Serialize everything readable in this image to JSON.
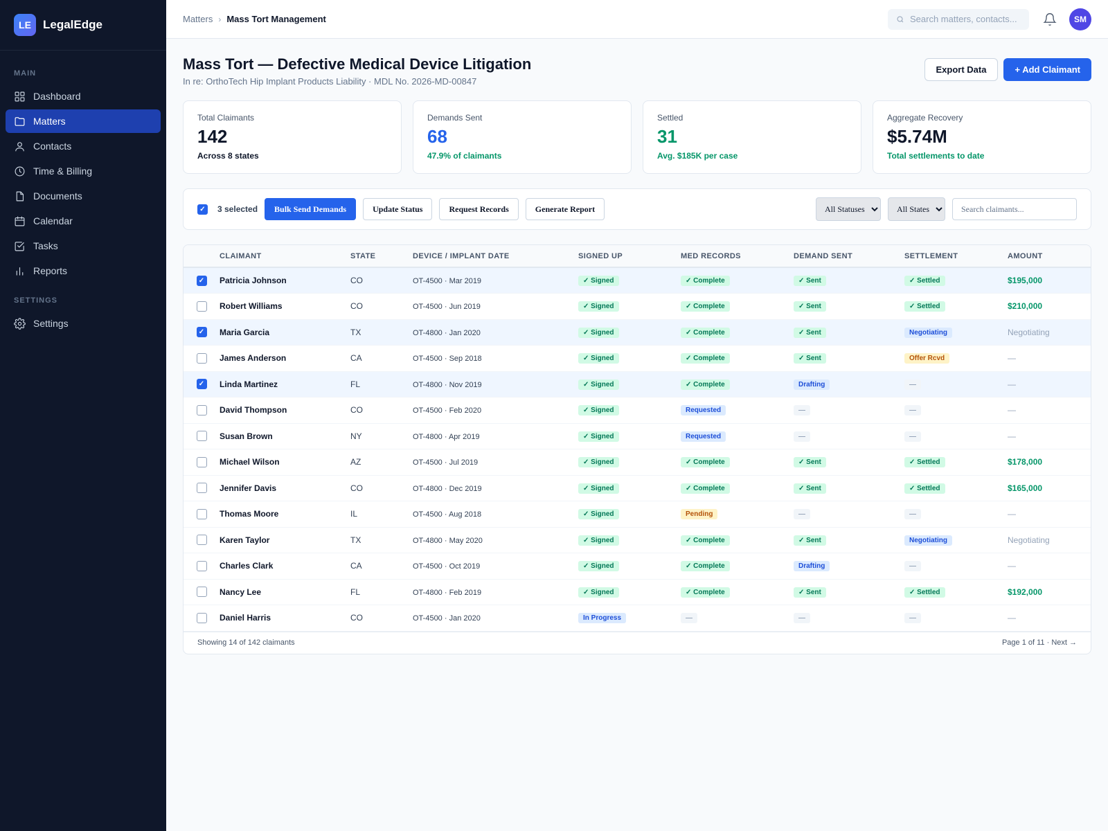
{
  "brand": {
    "logo": "LE",
    "name": "LegalEdge"
  },
  "sidebar": {
    "main_label": "MAIN",
    "settings_label": "SETTINGS",
    "items": [
      {
        "label": "Dashboard",
        "icon": "dashboard-icon"
      },
      {
        "label": "Matters",
        "icon": "folder-icon",
        "active": true
      },
      {
        "label": "Contacts",
        "icon": "user-icon"
      },
      {
        "label": "Time & Billing",
        "icon": "clock-icon"
      },
      {
        "label": "Documents",
        "icon": "document-icon"
      },
      {
        "label": "Calendar",
        "icon": "calendar-icon"
      },
      {
        "label": "Tasks",
        "icon": "task-icon"
      },
      {
        "label": "Reports",
        "icon": "bar-chart-icon"
      }
    ],
    "settings_items": [
      {
        "label": "Settings",
        "icon": "gear-icon"
      }
    ]
  },
  "topbar": {
    "breadcrumb_parent": "Matters",
    "breadcrumb_sep": "›",
    "breadcrumb_current": "Mass Tort Management",
    "search_placeholder": "Search matters, contacts...",
    "avatar": "SM"
  },
  "page": {
    "title": "Mass Tort — Defective Medical Device Litigation",
    "subtitle": "In re: OrthoTech Hip Implant Products Liability · MDL No. 2026-MD-00847",
    "export_label": "Export Data",
    "add_label": "+ Add Claimant"
  },
  "stats": [
    {
      "label": "Total Claimants",
      "value": "142",
      "note": "Across 8 states",
      "value_color": "#0f172a",
      "note_color": "#0f172a"
    },
    {
      "label": "Demands Sent",
      "value": "68",
      "note": "47.9% of claimants",
      "value_color": "#2563eb",
      "note_color": "#059669"
    },
    {
      "label": "Settled",
      "value": "31",
      "note": "Avg. $185K per case",
      "value_color": "#059669",
      "note_color": "#059669"
    },
    {
      "label": "Aggregate Recovery",
      "value": "$5.74M",
      "note": "Total settlements to date",
      "value_color": "#0f172a",
      "note_color": "#059669"
    }
  ],
  "toolbar": {
    "selected_text": "3 selected",
    "bulk_send_label": "Bulk Send Demands",
    "update_status_label": "Update Status",
    "request_records_label": "Request Records",
    "generate_report_label": "Generate Report",
    "status_filter": "All Statuses",
    "state_filter": "All States",
    "search_placeholder": "Search claimants..."
  },
  "table": {
    "columns": [
      "CLAIMANT",
      "STATE",
      "DEVICE / IMPLANT DATE",
      "SIGNED UP",
      "MED RECORDS",
      "DEMAND SENT",
      "SETTLEMENT",
      "AMOUNT"
    ],
    "rows": [
      {
        "selected": true,
        "name": "Patricia Johnson",
        "state": "CO",
        "device": "OT-4500 · Mar 2019",
        "signed": [
          "✓ Signed",
          "green"
        ],
        "records": [
          "✓ Complete",
          "green"
        ],
        "demand": [
          "✓ Sent",
          "green"
        ],
        "settlement": [
          "✓ Settled",
          "green"
        ],
        "amount": [
          "$195,000",
          "val"
        ]
      },
      {
        "selected": false,
        "name": "Robert Williams",
        "state": "CO",
        "device": "OT-4500 · Jun 2019",
        "signed": [
          "✓ Signed",
          "green"
        ],
        "records": [
          "✓ Complete",
          "green"
        ],
        "demand": [
          "✓ Sent",
          "green"
        ],
        "settlement": [
          "✓ Settled",
          "green"
        ],
        "amount": [
          "$210,000",
          "val"
        ]
      },
      {
        "selected": true,
        "name": "Maria Garcia",
        "state": "TX",
        "device": "OT-4800 · Jan 2020",
        "signed": [
          "✓ Signed",
          "green"
        ],
        "records": [
          "✓ Complete",
          "green"
        ],
        "demand": [
          "✓ Sent",
          "green"
        ],
        "settlement": [
          "Negotiating",
          "blue"
        ],
        "amount": [
          "Negotiating",
          "neg"
        ]
      },
      {
        "selected": false,
        "name": "James Anderson",
        "state": "CA",
        "device": "OT-4500 · Sep 2018",
        "signed": [
          "✓ Signed",
          "green"
        ],
        "records": [
          "✓ Complete",
          "green"
        ],
        "demand": [
          "✓ Sent",
          "green"
        ],
        "settlement": [
          "Offer Rcvd",
          "amber"
        ],
        "amount": [
          "—",
          "dash"
        ]
      },
      {
        "selected": true,
        "name": "Linda Martinez",
        "state": "FL",
        "device": "OT-4800 · Nov 2019",
        "signed": [
          "✓ Signed",
          "green"
        ],
        "records": [
          "✓ Complete",
          "green"
        ],
        "demand": [
          "Drafting",
          "blue"
        ],
        "settlement": [
          "—",
          "gray"
        ],
        "amount": [
          "—",
          "dash"
        ]
      },
      {
        "selected": false,
        "name": "David Thompson",
        "state": "CO",
        "device": "OT-4500 · Feb 2020",
        "signed": [
          "✓ Signed",
          "green"
        ],
        "records": [
          "Requested",
          "blue"
        ],
        "demand": [
          "—",
          "gray"
        ],
        "settlement": [
          "—",
          "gray"
        ],
        "amount": [
          "—",
          "dash"
        ]
      },
      {
        "selected": false,
        "name": "Susan Brown",
        "state": "NY",
        "device": "OT-4800 · Apr 2019",
        "signed": [
          "✓ Signed",
          "green"
        ],
        "records": [
          "Requested",
          "blue"
        ],
        "demand": [
          "—",
          "gray"
        ],
        "settlement": [
          "—",
          "gray"
        ],
        "amount": [
          "—",
          "dash"
        ]
      },
      {
        "selected": false,
        "name": "Michael Wilson",
        "state": "AZ",
        "device": "OT-4500 · Jul 2019",
        "signed": [
          "✓ Signed",
          "green"
        ],
        "records": [
          "✓ Complete",
          "green"
        ],
        "demand": [
          "✓ Sent",
          "green"
        ],
        "settlement": [
          "✓ Settled",
          "green"
        ],
        "amount": [
          "$178,000",
          "val"
        ]
      },
      {
        "selected": false,
        "name": "Jennifer Davis",
        "state": "CO",
        "device": "OT-4800 · Dec 2019",
        "signed": [
          "✓ Signed",
          "green"
        ],
        "records": [
          "✓ Complete",
          "green"
        ],
        "demand": [
          "✓ Sent",
          "green"
        ],
        "settlement": [
          "✓ Settled",
          "green"
        ],
        "amount": [
          "$165,000",
          "val"
        ]
      },
      {
        "selected": false,
        "name": "Thomas Moore",
        "state": "IL",
        "device": "OT-4500 · Aug 2018",
        "signed": [
          "✓ Signed",
          "green"
        ],
        "records": [
          "Pending",
          "amber"
        ],
        "demand": [
          "—",
          "gray"
        ],
        "settlement": [
          "—",
          "gray"
        ],
        "amount": [
          "—",
          "dash"
        ]
      },
      {
        "selected": false,
        "name": "Karen Taylor",
        "state": "TX",
        "device": "OT-4800 · May 2020",
        "signed": [
          "✓ Signed",
          "green"
        ],
        "records": [
          "✓ Complete",
          "green"
        ],
        "demand": [
          "✓ Sent",
          "green"
        ],
        "settlement": [
          "Negotiating",
          "blue"
        ],
        "amount": [
          "Negotiating",
          "neg"
        ]
      },
      {
        "selected": false,
        "name": "Charles Clark",
        "state": "CA",
        "device": "OT-4500 · Oct 2019",
        "signed": [
          "✓ Signed",
          "green"
        ],
        "records": [
          "✓ Complete",
          "green"
        ],
        "demand": [
          "Drafting",
          "blue"
        ],
        "settlement": [
          "—",
          "gray"
        ],
        "amount": [
          "—",
          "dash"
        ]
      },
      {
        "selected": false,
        "name": "Nancy Lee",
        "state": "FL",
        "device": "OT-4800 · Feb 2019",
        "signed": [
          "✓ Signed",
          "green"
        ],
        "records": [
          "✓ Complete",
          "green"
        ],
        "demand": [
          "✓ Sent",
          "green"
        ],
        "settlement": [
          "✓ Settled",
          "green"
        ],
        "amount": [
          "$192,000",
          "val"
        ]
      },
      {
        "selected": false,
        "name": "Daniel Harris",
        "state": "CO",
        "device": "OT-4500 · Jan 2020",
        "signed": [
          "In Progress",
          "blue"
        ],
        "records": [
          "—",
          "gray"
        ],
        "demand": [
          "—",
          "gray"
        ],
        "settlement": [
          "—",
          "gray"
        ],
        "amount": [
          "—",
          "dash"
        ]
      }
    ],
    "footer_left": "Showing 14 of 142 claimants",
    "footer_right": "Page 1 of 11 · Next →"
  }
}
